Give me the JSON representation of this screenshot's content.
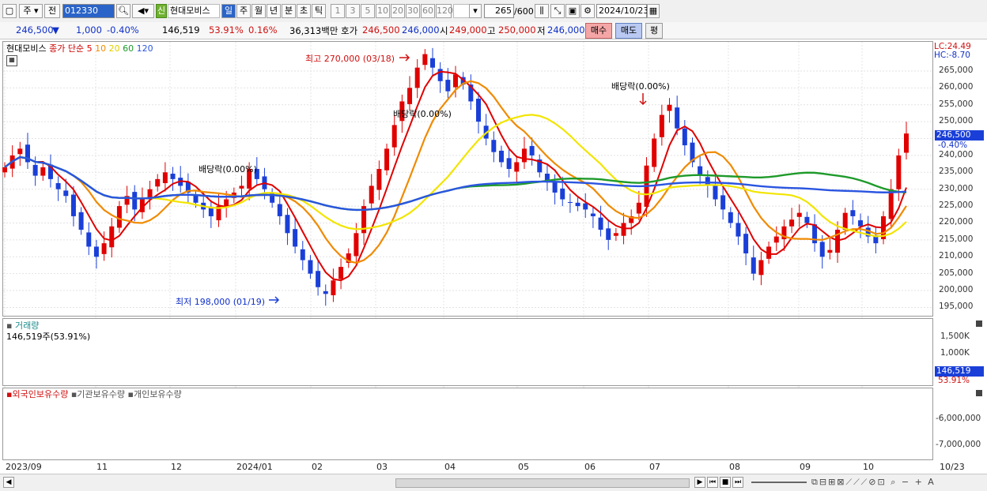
{
  "toolbar": {
    "period": "주",
    "period2": "전",
    "code": "012330",
    "stock_name": "현대모비스",
    "new_badge": "신",
    "tabs": [
      "일",
      "주",
      "월",
      "년",
      "분",
      "초",
      "틱"
    ],
    "nums": [
      "1",
      "3",
      "5",
      "10",
      "20",
      "30",
      "60",
      "120"
    ],
    "count": "265",
    "count_total": "/600",
    "date": "2024/10/23"
  },
  "quote": {
    "price": "246,500",
    "arrow": "▼",
    "change": "1,000",
    "change_pct": "-0.40%",
    "volume": "146,519",
    "vol_pct": "53.91%",
    "turnover_pct": "0.16%",
    "amount": "36,313백만",
    "ask_label": "호가",
    "ask": "246,500",
    "bid": "246,000",
    "open_label": "시",
    "open": "249,000",
    "high_label": "고",
    "high": "250,000",
    "low_label": "저",
    "low": "246,000",
    "buy": "매수",
    "sell": "매도",
    "avg": "평"
  },
  "price_panel": {
    "legend_name": "현대모비스",
    "legend_type": "종가 단순",
    "ma": [
      "5",
      "10",
      "20",
      "60",
      "120"
    ],
    "lc": "LC:24.49",
    "hc": "HC:-8.70",
    "high_note": "최고 270,000 (03/18)",
    "low_note": "최저 198,000 (01/19)",
    "div1": "배당락(0.00%)",
    "div2": "배당락(0.00%)",
    "div3": "배당락(0.00%)",
    "cur_price": "246,500",
    "cur_pct": "-0.40%",
    "yticks": [
      "265,000",
      "260,000",
      "255,000",
      "250,000",
      "245,000",
      "240,000",
      "235,000",
      "230,000",
      "225,000",
      "220,000",
      "215,000",
      "210,000",
      "205,000",
      "200,000",
      "195,000"
    ]
  },
  "volume_panel": {
    "title": "거래량",
    "value": "146,519주(53.91%)",
    "yticks": [
      "1,500K",
      "1,000K",
      "500K"
    ],
    "cur": "146,519",
    "cur_pct": "53.91%"
  },
  "holding_panel": {
    "foreign": "외국인보유수량",
    "inst": "기관보유수량",
    "indiv": "개인보유수량",
    "yticks": [
      "-6,000,000",
      "-7,000,000"
    ]
  },
  "xaxis": [
    "2023/09",
    "11",
    "12",
    "2024/01",
    "02",
    "03",
    "04",
    "05",
    "06",
    "07",
    "08",
    "09",
    "10"
  ],
  "xaxis_right": "10/23",
  "colors": {
    "up": "#e00000",
    "down": "#1a3fd8",
    "ma5": "#e00000",
    "ma10": "#f08a00",
    "ma20": "#f2e500",
    "ma60": "#1e9a2a",
    "ma120": "#2a55e0"
  },
  "chart_data": {
    "type": "candlestick",
    "title": "현대모비스",
    "ylim": [
      193000,
      272000
    ],
    "close": [
      236500,
      240000,
      242000,
      238000,
      234000,
      236500,
      233000,
      230000,
      228000,
      222000,
      218000,
      213000,
      210000,
      214000,
      219000,
      225000,
      228000,
      224000,
      227000,
      230000,
      233000,
      235000,
      233000,
      231000,
      229000,
      226000,
      224000,
      222000,
      225000,
      227000,
      229000,
      231000,
      236000,
      233000,
      230000,
      226000,
      222000,
      217000,
      213000,
      209000,
      205000,
      201000,
      199000,
      203000,
      207000,
      211000,
      217000,
      225000,
      231000,
      236000,
      242000,
      249000,
      256000,
      260000,
      266000,
      270000,
      266000,
      262000,
      259000,
      264000,
      261000,
      256000,
      250000,
      245000,
      241000,
      238000,
      236000,
      238000,
      242000,
      240000,
      235000,
      232000,
      229000,
      227000,
      226000,
      225000,
      224000,
      222000,
      218000,
      215000,
      217000,
      220000,
      222000,
      226000,
      237000,
      245000,
      252000,
      255000,
      248000,
      243000,
      238000,
      234000,
      231000,
      227000,
      224000,
      220000,
      216000,
      211000,
      205000,
      209000,
      213000,
      216000,
      219000,
      221000,
      223000,
      220000,
      214000,
      210000,
      212000,
      218000,
      223000,
      222000,
      219000,
      216000,
      214000,
      222000,
      230000,
      240000,
      246500
    ]
  }
}
